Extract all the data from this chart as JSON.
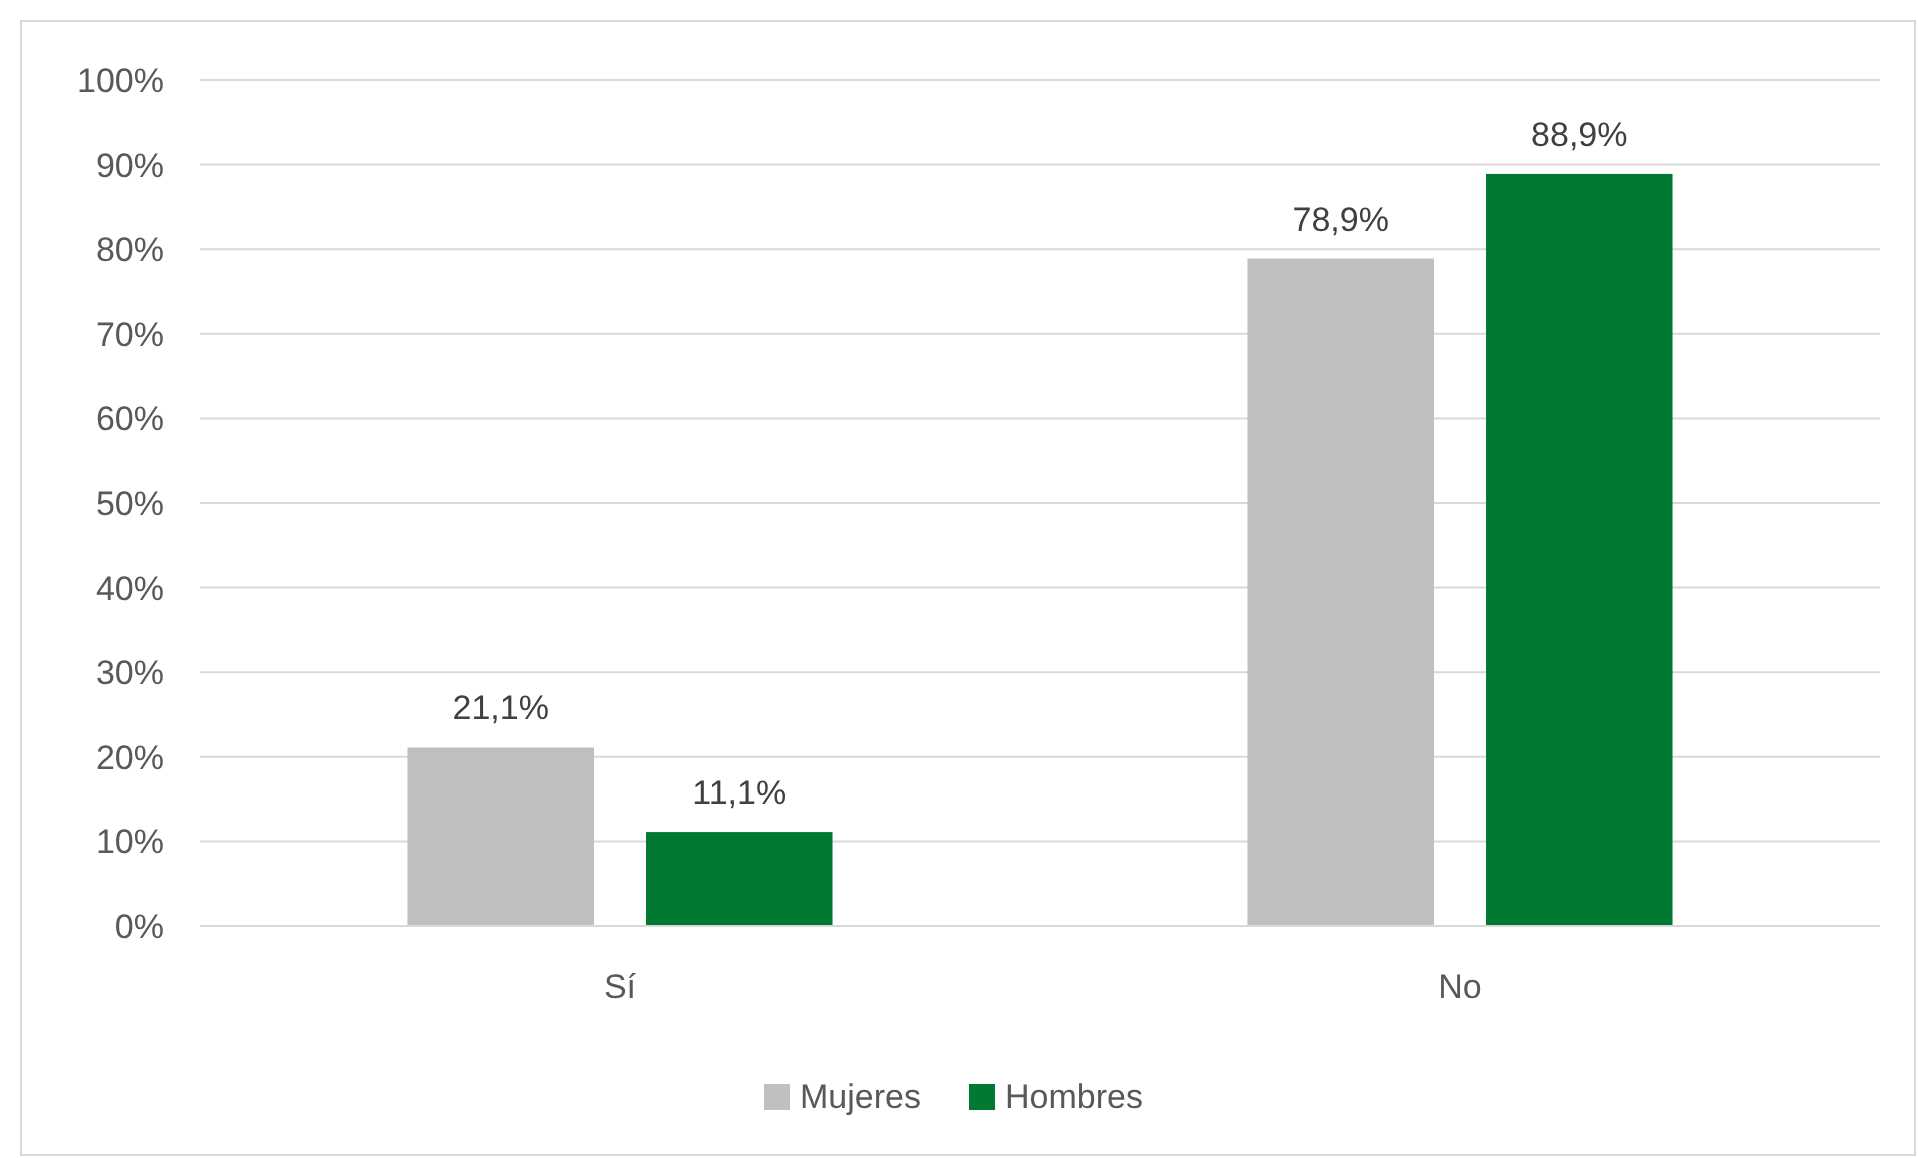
{
  "chart_data": {
    "type": "bar",
    "categories": [
      "Sí",
      "No"
    ],
    "series": [
      {
        "name": "Mujeres",
        "color": "#bfbfbf",
        "values": [
          21.1,
          78.9
        ],
        "value_labels": [
          "21,1%",
          "78,9%"
        ]
      },
      {
        "name": "Hombres",
        "color": "#007a33",
        "values": [
          11.1,
          88.9
        ],
        "value_labels": [
          "11,1%",
          "88,9%"
        ]
      }
    ],
    "ylim": [
      0,
      100
    ],
    "yticks": [
      {
        "value": 0,
        "label": "0%"
      },
      {
        "value": 10,
        "label": "10%"
      },
      {
        "value": 20,
        "label": "20%"
      },
      {
        "value": 30,
        "label": "30%"
      },
      {
        "value": 40,
        "label": "40%"
      },
      {
        "value": 50,
        "label": "50%"
      },
      {
        "value": 60,
        "label": "60%"
      },
      {
        "value": 70,
        "label": "70%"
      },
      {
        "value": 80,
        "label": "80%"
      },
      {
        "value": 90,
        "label": "90%"
      },
      {
        "value": 100,
        "label": "100%"
      }
    ],
    "grid": "y",
    "legend": "bottom"
  }
}
